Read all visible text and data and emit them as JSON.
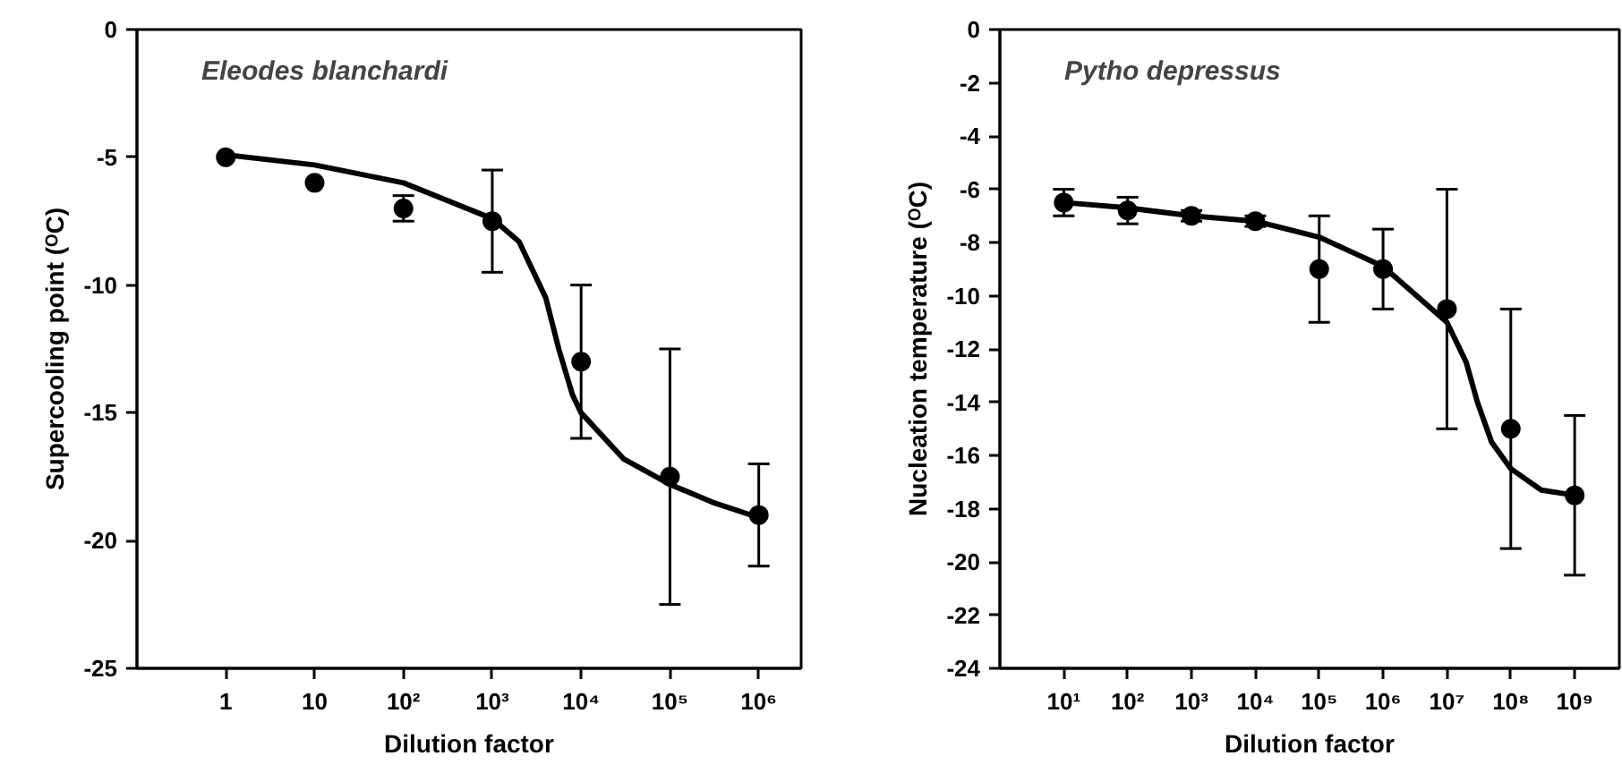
{
  "chart_data": [
    {
      "type": "scatter",
      "xlabel": "Dilution factor",
      "ylabel": "Supercooling point (ᴼC)",
      "annotations": [
        "Eleodes blanchardi"
      ],
      "log": "x",
      "grid": false,
      "xlim": [
        0.1,
        3000000
      ],
      "xticks": [
        1,
        10,
        {
          "value": 100,
          "label": "10²"
        },
        {
          "value": 1000,
          "label": "10³"
        },
        {
          "value": 10000,
          "label": "10⁴"
        },
        {
          "value": 100000,
          "label": "10⁵"
        },
        {
          "value": 1000000,
          "label": "10⁶"
        }
      ],
      "ylim": [
        -25,
        0
      ],
      "yticks": [
        -25,
        -20,
        -15,
        -10,
        -5,
        0
      ],
      "series": [
        {
          "marker": "circle",
          "color": "#000000",
          "x": [
            1,
            10,
            100,
            1000,
            10000,
            100000,
            1000000
          ],
          "values": [
            -5,
            -6,
            -7,
            -7.5,
            -13,
            -17.5,
            -19
          ],
          "errors": [
            null,
            null,
            [
              -7.5,
              -6.5
            ],
            [
              -9.5,
              -5.5
            ],
            [
              -16,
              -10
            ],
            [
              -22.5,
              -12.5
            ],
            [
              -21,
              -17
            ]
          ]
        },
        {
          "type": "line",
          "marker": "none",
          "color": "#000000",
          "line_style": "solid",
          "x": [
            1,
            10,
            100,
            1000,
            2000,
            4000,
            5600,
            8000,
            10000,
            30000,
            100000,
            300000,
            1000000
          ],
          "values": [
            -4.9,
            -5.3,
            -6.0,
            -7.4,
            -8.3,
            -10.5,
            -12.5,
            -14.3,
            -15,
            -16.8,
            -17.8,
            -18.5,
            -19.1
          ]
        }
      ]
    },
    {
      "type": "scatter",
      "xlabel": "Dilution factor",
      "ylabel": "Nucleation temperature (ᴼC)",
      "annotations": [
        "Pytho depressus"
      ],
      "log": "x",
      "grid": false,
      "xlim": [
        1,
        5000000000
      ],
      "xticks": [
        {
          "value": 10,
          "label": "10¹"
        },
        {
          "value": 100,
          "label": "10²"
        },
        {
          "value": 1000,
          "label": "10³"
        },
        {
          "value": 10000,
          "label": "10⁴"
        },
        {
          "value": 100000,
          "label": "10⁵"
        },
        {
          "value": 1000000,
          "label": "10⁶"
        },
        {
          "value": 10000000,
          "label": "10⁷"
        },
        {
          "value": 100000000,
          "label": "10⁸"
        },
        {
          "value": 1000000000,
          "label": "10⁹"
        }
      ],
      "ylim": [
        -24,
        0
      ],
      "yticks": [
        -24,
        -22,
        -20,
        -18,
        -16,
        -14,
        -12,
        -10,
        -8,
        -6,
        -4,
        -2,
        0
      ],
      "series": [
        {
          "marker": "circle",
          "color": "#000000",
          "x": [
            10,
            100,
            1000,
            10000,
            100000,
            1000000,
            10000000,
            100000000,
            1000000000
          ],
          "values": [
            -6.5,
            -6.8,
            -7,
            -7.2,
            -9,
            -9,
            -10.5,
            -15,
            -17.5
          ],
          "errors": [
            [
              -7,
              -6
            ],
            [
              -7.3,
              -6.3
            ],
            [
              -7.2,
              -6.8
            ],
            [
              -7.4,
              -7.0
            ],
            [
              -11,
              -7
            ],
            [
              -10.5,
              -7.5
            ],
            [
              -15,
              -6
            ],
            [
              -19.5,
              -10.5
            ],
            [
              -20.5,
              -14.5
            ]
          ]
        },
        {
          "type": "line",
          "marker": "none",
          "color": "#000000",
          "line_style": "solid",
          "x": [
            10,
            100,
            1000,
            10000,
            100000,
            1000000,
            10000000,
            20000000,
            30000000,
            50000000,
            100000000,
            300000000,
            1000000000
          ],
          "values": [
            -6.5,
            -6.7,
            -7,
            -7.2,
            -7.8,
            -8.9,
            -11,
            -12.5,
            -14,
            -15.5,
            -16.5,
            -17.3,
            -17.5
          ]
        }
      ]
    }
  ]
}
